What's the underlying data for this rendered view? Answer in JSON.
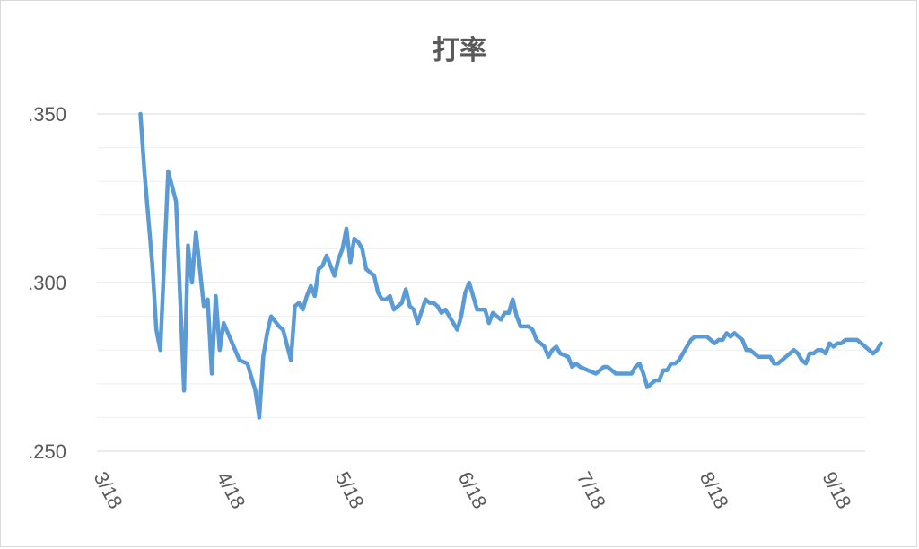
{
  "chart_data": {
    "type": "line",
    "title": "打率",
    "xlabel": "",
    "ylabel": "",
    "x_range": [
      "2018-03-18",
      "2018-09-28"
    ],
    "ylim": [
      0.25,
      0.35
    ],
    "yticks": [
      {
        "value": 0.35,
        "label": ".350"
      },
      {
        "value": 0.3,
        "label": ".300"
      },
      {
        "value": 0.25,
        "label": ".250"
      }
    ],
    "xticks": [
      {
        "value": "2018-03-18",
        "label": "3/18"
      },
      {
        "value": "2018-04-18",
        "label": "4/18"
      },
      {
        "value": "2018-05-18",
        "label": "5/18"
      },
      {
        "value": "2018-06-18",
        "label": "6/18"
      },
      {
        "value": "2018-07-18",
        "label": "7/18"
      },
      {
        "value": "2018-08-18",
        "label": "8/18"
      },
      {
        "value": "2018-09-18",
        "label": "9/18"
      }
    ],
    "minor_gridlines": [
      0.26,
      0.27,
      0.28,
      0.29,
      0.31,
      0.32,
      0.33,
      0.34
    ],
    "grid": true,
    "legend": "none",
    "series": [
      {
        "color": "#5b9bd5",
        "points": [
          [
            "2018-03-29",
            0.35
          ],
          [
            "2018-03-30",
            0.333
          ],
          [
            "2018-04-01",
            0.305
          ],
          [
            "2018-04-02",
            0.286
          ],
          [
            "2018-04-03",
            0.28
          ],
          [
            "2018-04-05",
            0.333
          ],
          [
            "2018-04-07",
            0.324
          ],
          [
            "2018-04-09",
            0.268
          ],
          [
            "2018-04-10",
            0.311
          ],
          [
            "2018-04-11",
            0.3
          ],
          [
            "2018-04-12",
            0.315
          ],
          [
            "2018-04-13",
            0.304
          ],
          [
            "2018-04-14",
            0.293
          ],
          [
            "2018-04-15",
            0.295
          ],
          [
            "2018-04-16",
            0.273
          ],
          [
            "2018-04-17",
            0.296
          ],
          [
            "2018-04-18",
            0.28
          ],
          [
            "2018-04-19",
            0.288
          ],
          [
            "2018-04-23",
            0.277
          ],
          [
            "2018-04-25",
            0.276
          ],
          [
            "2018-04-27",
            0.268
          ],
          [
            "2018-04-28",
            0.26
          ],
          [
            "2018-04-29",
            0.278
          ],
          [
            "2018-04-30",
            0.285
          ],
          [
            "2018-05-01",
            0.29
          ],
          [
            "2018-05-03",
            0.287
          ],
          [
            "2018-05-04",
            0.286
          ],
          [
            "2018-05-06",
            0.277
          ],
          [
            "2018-05-07",
            0.293
          ],
          [
            "2018-05-08",
            0.294
          ],
          [
            "2018-05-09",
            0.292
          ],
          [
            "2018-05-10",
            0.296
          ],
          [
            "2018-05-11",
            0.299
          ],
          [
            "2018-05-12",
            0.296
          ],
          [
            "2018-05-13",
            0.304
          ],
          [
            "2018-05-14",
            0.305
          ],
          [
            "2018-05-15",
            0.308
          ],
          [
            "2018-05-16",
            0.305
          ],
          [
            "2018-05-17",
            0.302
          ],
          [
            "2018-05-18",
            0.307
          ],
          [
            "2018-05-19",
            0.31
          ],
          [
            "2018-05-20",
            0.316
          ],
          [
            "2018-05-21",
            0.306
          ],
          [
            "2018-05-22",
            0.313
          ],
          [
            "2018-05-23",
            0.312
          ],
          [
            "2018-05-24",
            0.31
          ],
          [
            "2018-05-25",
            0.304
          ],
          [
            "2018-05-27",
            0.302
          ],
          [
            "2018-05-28",
            0.297
          ],
          [
            "2018-05-29",
            0.295
          ],
          [
            "2018-05-30",
            0.295
          ],
          [
            "2018-05-31",
            0.296
          ],
          [
            "2018-06-01",
            0.292
          ],
          [
            "2018-06-03",
            0.294
          ],
          [
            "2018-06-04",
            0.298
          ],
          [
            "2018-06-05",
            0.293
          ],
          [
            "2018-06-06",
            0.292
          ],
          [
            "2018-06-07",
            0.288
          ],
          [
            "2018-06-09",
            0.295
          ],
          [
            "2018-06-10",
            0.294
          ],
          [
            "2018-06-11",
            0.294
          ],
          [
            "2018-06-12",
            0.293
          ],
          [
            "2018-06-13",
            0.291
          ],
          [
            "2018-06-14",
            0.292
          ],
          [
            "2018-06-15",
            0.29
          ],
          [
            "2018-06-17",
            0.286
          ],
          [
            "2018-06-18",
            0.29
          ],
          [
            "2018-06-19",
            0.297
          ],
          [
            "2018-06-20",
            0.3
          ],
          [
            "2018-06-21",
            0.296
          ],
          [
            "2018-06-22",
            0.292
          ],
          [
            "2018-06-24",
            0.292
          ],
          [
            "2018-06-25",
            0.288
          ],
          [
            "2018-06-26",
            0.291
          ],
          [
            "2018-06-27",
            0.29
          ],
          [
            "2018-06-28",
            0.289
          ],
          [
            "2018-06-29",
            0.291
          ],
          [
            "2018-06-30",
            0.291
          ],
          [
            "2018-07-01",
            0.295
          ],
          [
            "2018-07-02",
            0.29
          ],
          [
            "2018-07-03",
            0.287
          ],
          [
            "2018-07-05",
            0.287
          ],
          [
            "2018-07-06",
            0.286
          ],
          [
            "2018-07-07",
            0.283
          ],
          [
            "2018-07-08",
            0.282
          ],
          [
            "2018-07-09",
            0.281
          ],
          [
            "2018-07-10",
            0.278
          ],
          [
            "2018-07-11",
            0.28
          ],
          [
            "2018-07-12",
            0.281
          ],
          [
            "2018-07-13",
            0.279
          ],
          [
            "2018-07-15",
            0.278
          ],
          [
            "2018-07-16",
            0.275
          ],
          [
            "2018-07-17",
            0.276
          ],
          [
            "2018-07-18",
            0.275
          ],
          [
            "2018-07-20",
            0.274
          ],
          [
            "2018-07-22",
            0.273
          ],
          [
            "2018-07-23",
            0.274
          ],
          [
            "2018-07-24",
            0.275
          ],
          [
            "2018-07-25",
            0.275
          ],
          [
            "2018-07-26",
            0.274
          ],
          [
            "2018-07-27",
            0.273
          ],
          [
            "2018-07-31",
            0.273
          ],
          [
            "2018-08-01",
            0.275
          ],
          [
            "2018-08-02",
            0.276
          ],
          [
            "2018-08-03",
            0.273
          ],
          [
            "2018-08-04",
            0.269
          ],
          [
            "2018-08-05",
            0.27
          ],
          [
            "2018-08-06",
            0.271
          ],
          [
            "2018-08-07",
            0.271
          ],
          [
            "2018-08-08",
            0.274
          ],
          [
            "2018-08-09",
            0.274
          ],
          [
            "2018-08-10",
            0.276
          ],
          [
            "2018-08-11",
            0.276
          ],
          [
            "2018-08-12",
            0.277
          ],
          [
            "2018-08-13",
            0.279
          ],
          [
            "2018-08-14",
            0.281
          ],
          [
            "2018-08-15",
            0.283
          ],
          [
            "2018-08-16",
            0.284
          ],
          [
            "2018-08-17",
            0.284
          ],
          [
            "2018-08-19",
            0.284
          ],
          [
            "2018-08-20",
            0.283
          ],
          [
            "2018-08-21",
            0.282
          ],
          [
            "2018-08-22",
            0.283
          ],
          [
            "2018-08-23",
            0.283
          ],
          [
            "2018-08-24",
            0.285
          ],
          [
            "2018-08-25",
            0.284
          ],
          [
            "2018-08-26",
            0.285
          ],
          [
            "2018-08-27",
            0.284
          ],
          [
            "2018-08-28",
            0.283
          ],
          [
            "2018-08-29",
            0.28
          ],
          [
            "2018-08-30",
            0.28
          ],
          [
            "2018-08-31",
            0.279
          ],
          [
            "2018-09-01",
            0.278
          ],
          [
            "2018-09-04",
            0.278
          ],
          [
            "2018-09-05",
            0.276
          ],
          [
            "2018-09-06",
            0.276
          ],
          [
            "2018-09-07",
            0.277
          ],
          [
            "2018-09-08",
            0.278
          ],
          [
            "2018-09-09",
            0.279
          ],
          [
            "2018-09-10",
            0.28
          ],
          [
            "2018-09-11",
            0.279
          ],
          [
            "2018-09-12",
            0.277
          ],
          [
            "2018-09-13",
            0.276
          ],
          [
            "2018-09-14",
            0.279
          ],
          [
            "2018-09-15",
            0.279
          ],
          [
            "2018-09-16",
            0.28
          ],
          [
            "2018-09-17",
            0.28
          ],
          [
            "2018-09-18",
            0.279
          ],
          [
            "2018-09-19",
            0.282
          ],
          [
            "2018-09-20",
            0.281
          ],
          [
            "2018-09-21",
            0.282
          ],
          [
            "2018-09-22",
            0.282
          ],
          [
            "2018-09-23",
            0.283
          ],
          [
            "2018-09-26",
            0.283
          ],
          [
            "2018-09-27",
            0.282
          ],
          [
            "2018-09-28",
            0.281
          ],
          [
            "2018-09-30",
            0.279
          ],
          [
            "2018-10-01",
            0.28
          ],
          [
            "2018-10-02",
            0.282
          ]
        ]
      }
    ]
  }
}
